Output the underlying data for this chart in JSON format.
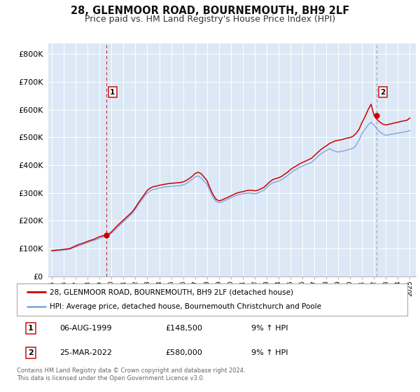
{
  "title": "28, GLENMOOR ROAD, BOURNEMOUTH, BH9 2LF",
  "subtitle": "Price paid vs. HM Land Registry's House Price Index (HPI)",
  "title_fontsize": 10.5,
  "subtitle_fontsize": 9,
  "background_color": "#ffffff",
  "plot_bg_color": "#dce8f5",
  "grid_color": "#ffffff",
  "red_line_color": "#cc0000",
  "blue_line_color": "#88aadd",
  "xlim": [
    1994.7,
    2025.5
  ],
  "ylim": [
    0,
    840000
  ],
  "yticks": [
    0,
    100000,
    200000,
    300000,
    400000,
    500000,
    600000,
    700000,
    800000
  ],
  "ytick_labels": [
    "£0",
    "£100K",
    "£200K",
    "£300K",
    "£400K",
    "£500K",
    "£600K",
    "£700K",
    "£800K"
  ],
  "xtick_years": [
    1995,
    1996,
    1997,
    1998,
    1999,
    2000,
    2001,
    2002,
    2003,
    2004,
    2005,
    2006,
    2007,
    2008,
    2009,
    2010,
    2011,
    2012,
    2013,
    2014,
    2015,
    2016,
    2017,
    2018,
    2019,
    2020,
    2021,
    2022,
    2023,
    2024,
    2025
  ],
  "sale1_x": 1999.59,
  "sale1_y": 148500,
  "sale1_label": "1",
  "sale1_date": "06-AUG-1999",
  "sale1_price": "£148,500",
  "sale1_hpi": "9% ↑ HPI",
  "sale2_x": 2022.23,
  "sale2_y": 580000,
  "sale2_label": "2",
  "sale2_date": "25-MAR-2022",
  "sale2_price": "£580,000",
  "sale2_hpi": "9% ↑ HPI",
  "legend_label_red": "28, GLENMOOR ROAD, BOURNEMOUTH, BH9 2LF (detached house)",
  "legend_label_blue": "HPI: Average price, detached house, Bournemouth Christchurch and Poole",
  "footnote": "Contains HM Land Registry data © Crown copyright and database right 2024.\nThis data is licensed under the Open Government Licence v3.0.",
  "red_x": [
    1995.0,
    1995.25,
    1995.5,
    1995.75,
    1996.0,
    1996.25,
    1996.5,
    1996.75,
    1997.0,
    1997.25,
    1997.5,
    1997.75,
    1998.0,
    1998.25,
    1998.5,
    1998.75,
    1999.0,
    1999.25,
    1999.5,
    1999.75,
    2000.0,
    2000.25,
    2000.5,
    2000.75,
    2001.0,
    2001.25,
    2001.5,
    2001.75,
    2002.0,
    2002.25,
    2002.5,
    2002.75,
    2003.0,
    2003.25,
    2003.5,
    2003.75,
    2004.0,
    2004.25,
    2004.5,
    2004.75,
    2005.0,
    2005.25,
    2005.5,
    2005.75,
    2006.0,
    2006.25,
    2006.5,
    2006.75,
    2007.0,
    2007.25,
    2007.5,
    2007.75,
    2008.0,
    2008.25,
    2008.5,
    2008.75,
    2009.0,
    2009.25,
    2009.5,
    2009.75,
    2010.0,
    2010.25,
    2010.5,
    2010.75,
    2011.0,
    2011.25,
    2011.5,
    2011.75,
    2012.0,
    2012.25,
    2012.5,
    2012.75,
    2013.0,
    2013.25,
    2013.5,
    2013.75,
    2014.0,
    2014.25,
    2014.5,
    2014.75,
    2015.0,
    2015.25,
    2015.5,
    2015.75,
    2016.0,
    2016.25,
    2016.5,
    2016.75,
    2017.0,
    2017.25,
    2017.5,
    2017.75,
    2018.0,
    2018.25,
    2018.5,
    2018.75,
    2019.0,
    2019.25,
    2019.5,
    2019.75,
    2020.0,
    2020.25,
    2020.5,
    2020.75,
    2021.0,
    2021.25,
    2021.5,
    2021.75,
    2022.0,
    2022.25,
    2022.5,
    2022.75,
    2023.0,
    2023.25,
    2023.5,
    2023.75,
    2024.0,
    2024.25,
    2024.5,
    2024.75,
    2025.0
  ],
  "red_y": [
    93000,
    94000,
    95000,
    96000,
    97000,
    98500,
    100000,
    105000,
    110000,
    115000,
    118000,
    122000,
    126000,
    130000,
    133000,
    138000,
    143000,
    146000,
    148500,
    152000,
    160000,
    172000,
    183000,
    193000,
    203000,
    213000,
    223000,
    233000,
    248000,
    265000,
    280000,
    295000,
    310000,
    318000,
    323000,
    325000,
    328000,
    330000,
    332000,
    334000,
    335000,
    336000,
    337000,
    338000,
    340000,
    345000,
    352000,
    360000,
    370000,
    375000,
    370000,
    358000,
    345000,
    318000,
    295000,
    278000,
    272000,
    275000,
    280000,
    285000,
    290000,
    295000,
    300000,
    303000,
    305000,
    308000,
    310000,
    310000,
    308000,
    310000,
    315000,
    320000,
    330000,
    340000,
    348000,
    352000,
    355000,
    360000,
    368000,
    375000,
    385000,
    392000,
    398000,
    405000,
    410000,
    415000,
    420000,
    425000,
    435000,
    445000,
    455000,
    463000,
    470000,
    478000,
    483000,
    488000,
    490000,
    492000,
    495000,
    498000,
    500000,
    505000,
    515000,
    530000,
    555000,
    575000,
    600000,
    620000,
    580000,
    565000,
    555000,
    548000,
    545000,
    548000,
    550000,
    553000,
    555000,
    558000,
    560000,
    562000,
    570000
  ],
  "blue_x": [
    1995.0,
    1995.25,
    1995.5,
    1995.75,
    1996.0,
    1996.25,
    1996.5,
    1996.75,
    1997.0,
    1997.25,
    1997.5,
    1997.75,
    1998.0,
    1998.25,
    1998.5,
    1998.75,
    1999.0,
    1999.25,
    1999.5,
    1999.75,
    2000.0,
    2000.25,
    2000.5,
    2000.75,
    2001.0,
    2001.25,
    2001.5,
    2001.75,
    2002.0,
    2002.25,
    2002.5,
    2002.75,
    2003.0,
    2003.25,
    2003.5,
    2003.75,
    2004.0,
    2004.25,
    2004.5,
    2004.75,
    2005.0,
    2005.25,
    2005.5,
    2005.75,
    2006.0,
    2006.25,
    2006.5,
    2006.75,
    2007.0,
    2007.25,
    2007.5,
    2007.75,
    2008.0,
    2008.25,
    2008.5,
    2008.75,
    2009.0,
    2009.25,
    2009.5,
    2009.75,
    2010.0,
    2010.25,
    2010.5,
    2010.75,
    2011.0,
    2011.25,
    2011.5,
    2011.75,
    2012.0,
    2012.25,
    2012.5,
    2012.75,
    2013.0,
    2013.25,
    2013.5,
    2013.75,
    2014.0,
    2014.25,
    2014.5,
    2014.75,
    2015.0,
    2015.25,
    2015.5,
    2015.75,
    2016.0,
    2016.25,
    2016.5,
    2016.75,
    2017.0,
    2017.25,
    2017.5,
    2017.75,
    2018.0,
    2018.25,
    2018.5,
    2018.75,
    2019.0,
    2019.25,
    2019.5,
    2019.75,
    2020.0,
    2020.25,
    2020.5,
    2020.75,
    2021.0,
    2021.25,
    2021.5,
    2021.75,
    2022.0,
    2022.25,
    2022.5,
    2022.75,
    2023.0,
    2023.25,
    2023.5,
    2023.75,
    2024.0,
    2024.25,
    2024.5,
    2024.75,
    2025.0
  ],
  "blue_y": [
    91000,
    92000,
    93000,
    94000,
    95000,
    96500,
    98000,
    102000,
    106000,
    110000,
    114000,
    118000,
    122000,
    126000,
    129000,
    133000,
    137000,
    141000,
    144000,
    148000,
    156000,
    166000,
    177000,
    187000,
    197000,
    207000,
    217000,
    228000,
    242000,
    258000,
    273000,
    288000,
    300000,
    308000,
    313000,
    315000,
    318000,
    320000,
    322000,
    323000,
    324000,
    325000,
    326000,
    327000,
    329000,
    334000,
    341000,
    349000,
    358000,
    362000,
    355000,
    343000,
    332000,
    307000,
    285000,
    270000,
    265000,
    268000,
    273000,
    278000,
    283000,
    288000,
    292000,
    295000,
    297000,
    299000,
    300000,
    299000,
    297000,
    300000,
    305000,
    310000,
    320000,
    330000,
    337000,
    340000,
    343000,
    348000,
    356000,
    363000,
    372000,
    380000,
    386000,
    393000,
    397000,
    402000,
    406000,
    410000,
    420000,
    430000,
    440000,
    447000,
    453000,
    460000,
    455000,
    450000,
    448000,
    450000,
    452000,
    455000,
    458000,
    462000,
    472000,
    492000,
    515000,
    530000,
    545000,
    555000,
    545000,
    530000,
    520000,
    512000,
    508000,
    510000,
    512000,
    514000,
    516000,
    518000,
    520000,
    522000,
    525000
  ]
}
